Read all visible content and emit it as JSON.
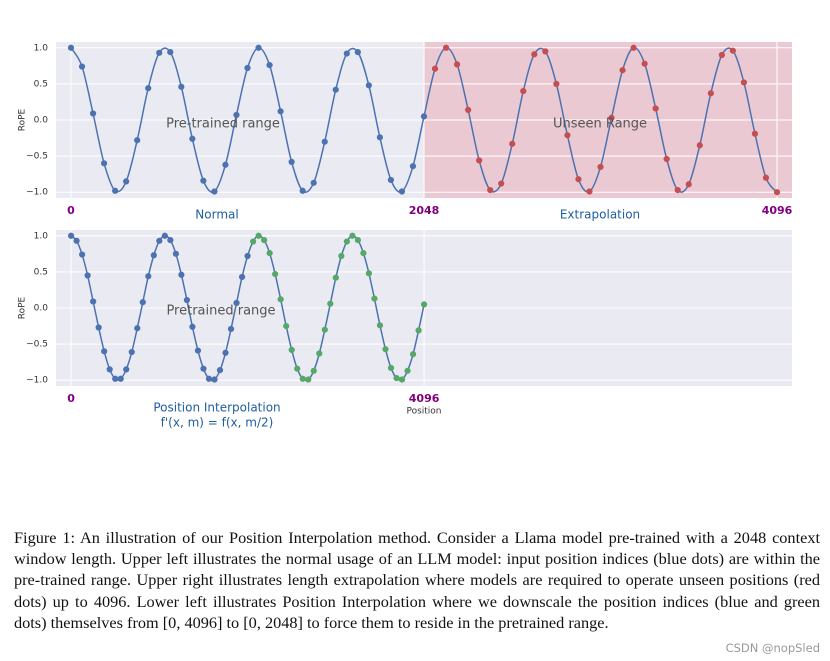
{
  "chart_data": [
    {
      "type": "line",
      "ylabel": "RoPE",
      "line_color": "#4c72b0",
      "background": "#eaeaf2",
      "grid": true,
      "xlim": [
        -87,
        4183
      ],
      "xticks": [
        0,
        2048,
        4096
      ],
      "ylim": [
        -1.08,
        1.08
      ],
      "yticks": [
        {
          "value": 1,
          "label": "1.0"
        },
        {
          "value": 0.5,
          "label": "0.5"
        },
        {
          "value": 0,
          "label": "0.0"
        },
        {
          "value": -0.5,
          "label": "−0.5"
        },
        {
          "value": -1,
          "label": "−1.0"
        }
      ],
      "highlight_from": 2048,
      "highlight_color": "#ebc9d2",
      "annotations": [
        "Pre-trained range",
        "Unseen Range"
      ],
      "region_labels": [
        "Normal",
        "Extrapolation"
      ],
      "series": [
        {
          "color": "#4c72b0",
          "x": [
            0,
            64,
            128,
            192,
            256,
            320,
            384,
            448,
            512,
            576,
            640,
            704,
            768,
            832,
            896,
            960,
            1024,
            1088,
            1152,
            1216,
            1280,
            1344,
            1408,
            1472,
            1536,
            1600,
            1664,
            1728,
            1792,
            1856,
            1920,
            1984,
            2048
          ],
          "values": [
            1.0,
            0.74,
            0.09,
            -0.6,
            -0.98,
            -0.85,
            -0.28,
            0.44,
            0.93,
            0.94,
            0.46,
            -0.26,
            -0.84,
            -0.99,
            -0.62,
            0.07,
            0.72,
            1.0,
            0.76,
            0.12,
            -0.58,
            -0.98,
            -0.87,
            -0.3,
            0.42,
            0.92,
            0.94,
            0.48,
            -0.24,
            -0.83,
            -0.99,
            -0.64,
            0.05
          ]
        },
        {
          "color": "#c44e52",
          "x": [
            2112,
            2176,
            2240,
            2304,
            2368,
            2432,
            2496,
            2560,
            2624,
            2688,
            2752,
            2816,
            2880,
            2944,
            3008,
            3072,
            3136,
            3200,
            3264,
            3328,
            3392,
            3456,
            3520,
            3584,
            3648,
            3712,
            3776,
            3840,
            3904,
            3968,
            4032,
            4096
          ],
          "values": [
            0.71,
            1.0,
            0.77,
            0.14,
            -0.56,
            -0.97,
            -0.88,
            -0.33,
            0.4,
            0.91,
            0.95,
            0.5,
            -0.21,
            -0.82,
            -0.99,
            -0.65,
            0.03,
            0.69,
            1.0,
            0.78,
            0.16,
            -0.54,
            -0.97,
            -0.89,
            -0.35,
            0.37,
            0.9,
            0.96,
            0.52,
            -0.19,
            -0.8,
            -1.0
          ]
        }
      ]
    },
    {
      "type": "line",
      "ylabel": "RoPE",
      "xlabel": "Position",
      "line_color": "#4c72b0",
      "background": "#eaeaf2",
      "grid": true,
      "xlim": [
        -175,
        8365
      ],
      "xticks": [
        0,
        4096
      ],
      "ylim": [
        -1.08,
        1.08
      ],
      "yticks": [
        {
          "value": 1,
          "label": "1.0"
        },
        {
          "value": 0.5,
          "label": "0.5"
        },
        {
          "value": 0,
          "label": "0.0"
        },
        {
          "value": -0.5,
          "label": "−0.5"
        },
        {
          "value": -1,
          "label": "−1.0"
        }
      ],
      "annotations": [
        "Pretrained range"
      ],
      "region_labels": [
        "Position Interpolation",
        "f'(x, m) = f(x, m/2)"
      ],
      "series": [
        {
          "color": "#4c72b0",
          "x": [
            0,
            64,
            128,
            192,
            256,
            320,
            384,
            448,
            512,
            576,
            640,
            704,
            768,
            832,
            896,
            960,
            1024,
            1088,
            1152,
            1216,
            1280,
            1344,
            1408,
            1472,
            1536,
            1600,
            1664,
            1728,
            1792,
            1856,
            1920,
            1984,
            2048
          ],
          "values": [
            1.0,
            0.93,
            0.74,
            0.45,
            0.09,
            -0.27,
            -0.6,
            -0.85,
            -0.98,
            -0.98,
            -0.85,
            -0.61,
            -0.28,
            0.08,
            0.44,
            0.73,
            0.93,
            1.0,
            0.94,
            0.75,
            0.46,
            0.11,
            -0.26,
            -0.59,
            -0.84,
            -0.98,
            -0.99,
            -0.86,
            -0.62,
            -0.29,
            0.07,
            0.43,
            0.72
          ]
        },
        {
          "color": "#55a868",
          "x": [
            2112,
            2176,
            2240,
            2304,
            2368,
            2432,
            2496,
            2560,
            2624,
            2688,
            2752,
            2816,
            2880,
            2944,
            3008,
            3072,
            3136,
            3200,
            3264,
            3328,
            3392,
            3456,
            3520,
            3584,
            3648,
            3712,
            3776,
            3840,
            3904,
            3968,
            4032,
            4096
          ],
          "values": [
            0.92,
            1.0,
            0.94,
            0.76,
            0.47,
            0.12,
            -0.25,
            -0.58,
            -0.84,
            -0.98,
            -0.99,
            -0.87,
            -0.63,
            -0.3,
            0.06,
            0.42,
            0.72,
            0.92,
            1.0,
            0.94,
            0.76,
            0.48,
            0.13,
            -0.24,
            -0.57,
            -0.83,
            -0.97,
            -0.99,
            -0.87,
            -0.64,
            -0.31,
            0.05
          ]
        }
      ]
    }
  ],
  "caption": "Figure 1: An illustration of our Position Interpolation method. Consider a Llama model pre-trained with a 2048 context window length. Upper left illustrates the normal usage of an LLM model: input position indices (blue dots) are within the pre-trained range. Upper right illustrates length extrapolation where models are required to operate unseen positions (red dots) up to 4096. Lower left illustrates Position Interpolation where we downscale the position indices (blue and green dots) themselves from [0, 4096] to [0, 2048] to force them to reside in the pretrained range.",
  "watermark": "CSDN @nopSled"
}
